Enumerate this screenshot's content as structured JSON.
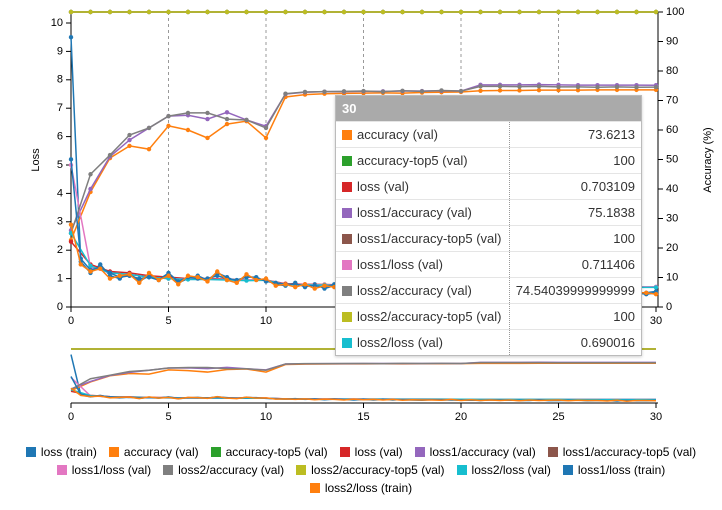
{
  "chart_data": {
    "type": "line",
    "ylabel": "Loss",
    "y2label": "Accuracy (%)",
    "x": [
      0,
      1,
      2,
      3,
      4,
      5,
      6,
      7,
      8,
      9,
      10,
      11,
      12,
      13,
      14,
      15,
      16,
      17,
      18,
      19,
      20,
      21,
      22,
      23,
      24,
      25,
      26,
      27,
      28,
      29,
      30
    ],
    "xlim": [
      0,
      30
    ],
    "xticks": [
      0,
      5,
      10,
      15,
      20,
      25,
      30
    ],
    "ylim": [
      0,
      10
    ],
    "yticks": [
      0,
      1,
      2,
      3,
      4,
      5,
      6,
      7,
      8,
      9,
      10
    ],
    "y2lim": [
      0,
      100
    ],
    "y2ticks": [
      0,
      10,
      20,
      30,
      40,
      50,
      60,
      70,
      80,
      90,
      100
    ],
    "grid": "x",
    "series": [
      {
        "name": "loss (train)",
        "color": "#1f77b4",
        "x": [
          0,
          0.5,
          1,
          1.5,
          2,
          2.5,
          3,
          3.5,
          4,
          4.5,
          5,
          5.5,
          6,
          6.5,
          7,
          7.5,
          8,
          8.5,
          9,
          9.5,
          10,
          10.5,
          11,
          11.5,
          12,
          12.5,
          13,
          13.5,
          14,
          14.5,
          15,
          15.5,
          16,
          16.5,
          17,
          17.5,
          18,
          18.5,
          19,
          19.5,
          20,
          20.5,
          21,
          21.5,
          22,
          22.5,
          23,
          23.5,
          24,
          24.5,
          25,
          25.5,
          26,
          26.5,
          27,
          27.5,
          28,
          28.5,
          29,
          29.5,
          30
        ],
        "values": [
          9.5,
          1.6,
          1.2,
          1.5,
          1.1,
          1.0,
          1.2,
          0.9,
          1.1,
          1.0,
          1.15,
          0.85,
          1.0,
          1.1,
          0.95,
          1.2,
          1.05,
          0.9,
          1.1,
          1.0,
          0.95,
          0.8,
          0.75,
          0.85,
          0.7,
          0.8,
          0.65,
          0.75,
          0.7,
          0.6,
          0.7,
          0.65,
          0.75,
          0.6,
          0.7,
          0.65,
          0.55,
          0.7,
          0.6,
          0.65,
          0.55,
          0.6,
          0.5,
          0.65,
          0.55,
          0.6,
          0.5,
          0.55,
          0.6,
          0.5,
          0.55,
          0.5,
          0.6,
          0.45,
          0.55,
          0.5,
          0.4,
          0.55,
          0.5,
          0.45,
          0.5
        ]
      },
      {
        "name": "accuracy (val)",
        "color": "#ff7f0e",
        "axis": "y2",
        "values": [
          22.7,
          39,
          50.5,
          54.6,
          53.5,
          61.4,
          60,
          57.3,
          62,
          63,
          57.3,
          71.2,
          72,
          72.3,
          72.4,
          72.5,
          72.6,
          72.5,
          72.7,
          72.8,
          72.9,
          73.3,
          73.4,
          73.4,
          73.5,
          73.5,
          73.5,
          73.6,
          73.6,
          73.6,
          73.6213
        ]
      },
      {
        "name": "accuracy-top5 (val)",
        "color": "#2ca02c",
        "axis": "y2",
        "values": [
          100,
          100,
          100,
          100,
          100,
          100,
          100,
          100,
          100,
          100,
          100,
          100,
          100,
          100,
          100,
          100,
          100,
          100,
          100,
          100,
          100,
          100,
          100,
          100,
          100,
          100,
          100,
          100,
          100,
          100,
          100
        ]
      },
      {
        "name": "loss (val)",
        "color": "#d62728",
        "values": [
          2.3,
          1.5,
          1.25,
          1.2,
          1.1,
          1.05,
          1.0,
          1.0,
          0.98,
          0.95,
          0.95,
          0.82,
          0.8,
          0.79,
          0.78,
          0.77,
          0.76,
          0.76,
          0.75,
          0.75,
          0.74,
          0.72,
          0.72,
          0.72,
          0.71,
          0.71,
          0.71,
          0.71,
          0.7,
          0.7,
          0.703109
        ]
      },
      {
        "name": "loss1/accuracy (val)",
        "color": "#9467bd",
        "axis": "y2",
        "values": [
          26,
          40,
          51,
          56.6,
          60.7,
          64.7,
          65,
          63.7,
          66,
          63.4,
          61.3,
          72.2,
          72.8,
          73,
          73,
          73.1,
          73.1,
          73.2,
          73.2,
          73.3,
          73.2,
          75.3,
          75.3,
          75.3,
          75.4,
          75.3,
          75.2,
          75.2,
          75.2,
          75.2,
          75.1838
        ]
      },
      {
        "name": "loss1/accuracy-top5 (val)",
        "color": "#8c564b",
        "axis": "y2",
        "values": [
          100,
          100,
          100,
          100,
          100,
          100,
          100,
          100,
          100,
          100,
          100,
          100,
          100,
          100,
          100,
          100,
          100,
          100,
          100,
          100,
          100,
          100,
          100,
          100,
          100,
          100,
          100,
          100,
          100,
          100,
          100
        ]
      },
      {
        "name": "loss1/loss (val)",
        "color": "#e377c2",
        "values": [
          5.0,
          1.4,
          1.2,
          1.15,
          1.05,
          1.0,
          0.98,
          0.98,
          0.96,
          0.95,
          0.95,
          0.8,
          0.79,
          0.78,
          0.78,
          0.77,
          0.76,
          0.75,
          0.75,
          0.74,
          0.74,
          0.72,
          0.72,
          0.72,
          0.72,
          0.71,
          0.71,
          0.71,
          0.71,
          0.71,
          0.711406
        ]
      },
      {
        "name": "loss2/accuracy (val)",
        "color": "#7f7f7f",
        "axis": "y2",
        "values": [
          25,
          45,
          51.5,
          58.3,
          60.7,
          64.7,
          65.8,
          65.8,
          63.7,
          63.4,
          60.7,
          72.3,
          72.9,
          73,
          73.1,
          73.2,
          73,
          73.3,
          73.1,
          73.4,
          73.2,
          74.8,
          74.8,
          74.7,
          74.8,
          74.6,
          74.6,
          74.5,
          74.6,
          74.5,
          74.54039999999999
        ]
      },
      {
        "name": "loss2/accuracy-top5 (val)",
        "color": "#bcbd22",
        "axis": "y2",
        "values": [
          100,
          100,
          100,
          100,
          100,
          100,
          100,
          100,
          100,
          100,
          100,
          100,
          100,
          100,
          100,
          100,
          100,
          100,
          100,
          100,
          100,
          100,
          100,
          100,
          100,
          100,
          100,
          100,
          100,
          100,
          100
        ]
      },
      {
        "name": "loss2/loss (val)",
        "color": "#17becf",
        "values": [
          2.6,
          1.45,
          1.2,
          1.15,
          1.05,
          1.0,
          0.97,
          0.97,
          0.95,
          0.93,
          0.94,
          0.79,
          0.78,
          0.77,
          0.76,
          0.75,
          0.75,
          0.74,
          0.74,
          0.73,
          0.73,
          0.71,
          0.71,
          0.7,
          0.7,
          0.7,
          0.69,
          0.69,
          0.69,
          0.69,
          0.690016
        ]
      },
      {
        "name": "loss1/loss (train)",
        "color": "#1f77b4",
        "x": [
          0,
          0.5,
          1,
          1.5,
          2,
          2.5,
          3,
          3.5,
          4,
          4.5,
          5,
          5.5,
          6,
          6.5,
          7,
          7.5,
          8,
          8.5,
          9,
          9.5,
          10,
          10.5,
          11,
          11.5,
          12,
          12.5,
          13,
          13.5,
          14,
          14.5,
          15,
          15.5,
          16,
          16.5,
          17,
          17.5,
          18,
          18.5,
          19,
          19.5,
          20,
          20.5,
          21,
          21.5,
          22,
          22.5,
          23,
          23.5,
          24,
          24.5,
          25,
          25.5,
          26,
          26.5,
          27,
          27.5,
          28,
          28.5,
          29,
          29.5,
          30
        ],
        "values": [
          5.2,
          1.7,
          1.3,
          1.4,
          1.2,
          1.05,
          1.1,
          1.0,
          1.05,
          0.95,
          1.2,
          0.9,
          1.05,
          1.0,
          1.0,
          1.1,
          1.0,
          0.95,
          1.05,
          1.05,
          0.9,
          0.85,
          0.8,
          0.8,
          0.75,
          0.75,
          0.7,
          0.8,
          0.65,
          0.65,
          0.75,
          0.6,
          0.7,
          0.65,
          0.65,
          0.6,
          0.6,
          0.65,
          0.65,
          0.6,
          0.6,
          0.55,
          0.55,
          0.6,
          0.6,
          0.55,
          0.55,
          0.5,
          0.65,
          0.5,
          0.5,
          0.55,
          0.55,
          0.5,
          0.5,
          0.45,
          0.5,
          0.5,
          0.45,
          0.5,
          0.55
        ]
      },
      {
        "name": "loss2/loss (train)",
        "color": "#ff7f0e",
        "x": [
          0,
          0.5,
          1,
          1.5,
          2,
          2.5,
          3,
          3.5,
          4,
          4.5,
          5,
          5.5,
          6,
          6.5,
          7,
          7.5,
          8,
          8.5,
          9,
          9.5,
          10,
          10.5,
          11,
          11.5,
          12,
          12.5,
          13,
          13.5,
          14,
          14.5,
          15,
          15.5,
          16,
          16.5,
          17,
          17.5,
          18,
          18.5,
          19,
          19.5,
          20,
          20.5,
          21,
          21.5,
          22,
          22.5,
          23,
          23.5,
          24,
          24.5,
          25,
          25.5,
          26,
          26.5,
          27,
          27.5,
          28,
          28.5,
          29,
          29.5,
          30
        ],
        "values": [
          2.9,
          1.5,
          1.25,
          1.35,
          1.0,
          1.1,
          1.15,
          0.85,
          1.2,
          0.95,
          1.1,
          0.8,
          1.1,
          1.05,
          0.9,
          1.25,
          0.95,
          0.85,
          1.15,
          0.95,
          1.0,
          0.75,
          0.8,
          0.7,
          0.8,
          0.65,
          0.75,
          0.7,
          0.6,
          0.75,
          0.65,
          0.7,
          0.6,
          0.7,
          0.55,
          0.65,
          0.6,
          0.6,
          0.55,
          0.7,
          0.5,
          0.65,
          0.5,
          0.6,
          0.5,
          0.6,
          0.45,
          0.6,
          0.5,
          0.55,
          0.6,
          0.45,
          0.55,
          0.5,
          0.5,
          0.4,
          0.55,
          0.35,
          0.5,
          0.5,
          0.45
        ]
      }
    ]
  }
}
